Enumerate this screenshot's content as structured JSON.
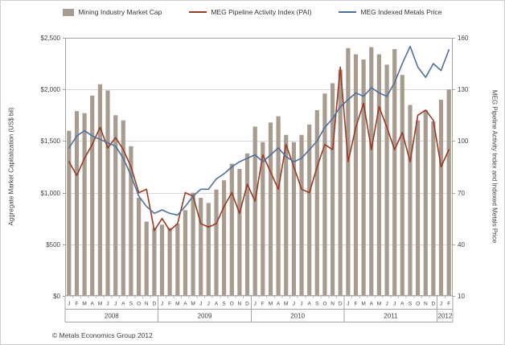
{
  "legend": [
    {
      "label": "Mining Industry Market Cap",
      "type": "bar",
      "color": "#a79c8f"
    },
    {
      "label": "MEG Pipeline Activity Index (PAI)",
      "type": "line",
      "color": "#9a3b24"
    },
    {
      "label": "MEG Indexed Metals Price",
      "type": "line",
      "color": "#4f6f9c"
    }
  ],
  "footer": {
    "copyright": "© Metals Economics Group 2012"
  },
  "chart_data": {
    "type": "combo",
    "title": "",
    "left_axis": {
      "title": "Aggregate Market Capitalization (US$ bil)",
      "tick_labels": [
        "$0",
        "$500",
        "$1,000",
        "$1,500",
        "$2,000",
        "$2,500"
      ],
      "tick_values": [
        0,
        500,
        1000,
        1500,
        2000,
        2500
      ],
      "min": 0,
      "max": 2500
    },
    "right_axis": {
      "title": "MEG Pipeline Activity Index and Indexed Metals Price",
      "tick_labels": [
        "10",
        "40",
        "70",
        "100",
        "130",
        "160"
      ],
      "tick_values": [
        10,
        40,
        70,
        100,
        130,
        160
      ],
      "min": 10,
      "max": 160
    },
    "x": {
      "month_labels": [
        "J",
        "F",
        "M",
        "A",
        "M",
        "J",
        "J",
        "A",
        "S",
        "O",
        "N",
        "D",
        "J",
        "F",
        "M",
        "A",
        "M",
        "J",
        "J",
        "A",
        "S",
        "O",
        "N",
        "D",
        "J",
        "F",
        "M",
        "A",
        "M",
        "J",
        "J",
        "A",
        "S",
        "O",
        "N",
        "D",
        "J",
        "F",
        "M",
        "A",
        "M",
        "J",
        "J",
        "A",
        "S",
        "O",
        "N",
        "D",
        "J",
        "F"
      ],
      "year_groups": [
        {
          "label": "2008",
          "months": 12
        },
        {
          "label": "2009",
          "months": 12
        },
        {
          "label": "2010",
          "months": 12
        },
        {
          "label": "2011",
          "months": 12
        },
        {
          "label": "2012",
          "months": 2
        }
      ]
    },
    "series": [
      {
        "name": "Mining Industry Market Cap",
        "type": "bar",
        "axis": "left",
        "color": "#a79c8f",
        "values": [
          1600,
          1790,
          1770,
          1940,
          2050,
          1990,
          1750,
          1700,
          1450,
          950,
          720,
          660,
          690,
          660,
          700,
          830,
          1000,
          950,
          900,
          1030,
          1120,
          1280,
          1230,
          1380,
          1640,
          1490,
          1680,
          1740,
          1560,
          1490,
          1560,
          1660,
          1800,
          1960,
          2060,
          2190,
          2400,
          2340,
          2290,
          2410,
          2340,
          2240,
          2390,
          2140,
          1850,
          1700,
          1800,
          1690,
          1900,
          2000
        ]
      },
      {
        "name": "MEG Pipeline Activity Index (PAI)",
        "type": "line",
        "axis": "right",
        "color": "#9a3b24",
        "values": [
          88,
          80,
          90,
          98,
          108,
          96,
          102,
          95,
          85,
          70,
          72,
          48,
          55,
          48,
          52,
          70,
          68,
          52,
          50,
          52,
          62,
          70,
          58,
          75,
          65,
          92,
          82,
          72,
          98,
          85,
          72,
          70,
          85,
          98,
          95,
          143,
          88,
          108,
          122,
          95,
          120,
          108,
          95,
          105,
          88,
          115,
          118,
          112,
          85,
          95
        ]
      },
      {
        "name": "MEG Indexed Metals Price",
        "type": "line",
        "axis": "right",
        "color": "#4f6f9c",
        "values": [
          96,
          103,
          106,
          103,
          101,
          99,
          97,
          90,
          80,
          68,
          62,
          58,
          60,
          58,
          57,
          62,
          68,
          72,
          72,
          78,
          81,
          85,
          88,
          90,
          92,
          88,
          92,
          96,
          91,
          88,
          90,
          95,
          100,
          108,
          113,
          120,
          124,
          128,
          126,
          131,
          128,
          126,
          134,
          145,
          155,
          143,
          137,
          145,
          141,
          153
        ]
      }
    ]
  }
}
